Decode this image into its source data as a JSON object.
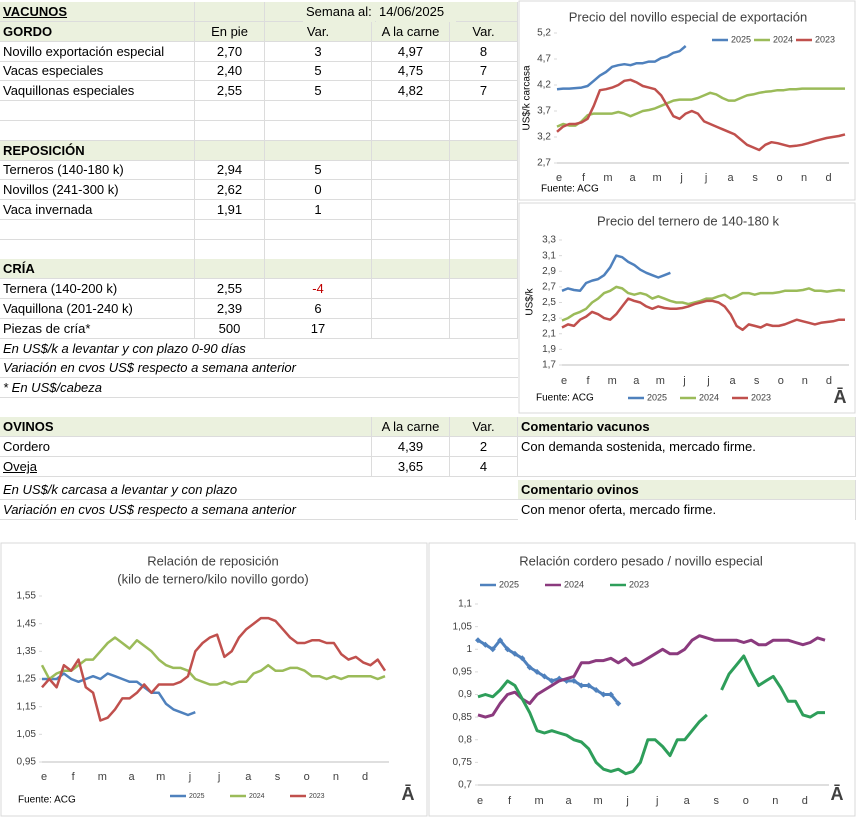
{
  "vacunos": {
    "title": "VACUNOS",
    "week_label": "Semana al:",
    "week": "14/06/2025",
    "gordo": {
      "title": "GORDO",
      "columns": [
        "En pie",
        "Var.",
        "A la carne",
        "Var."
      ],
      "rows": [
        [
          "Novillo exportación especial",
          "2,70",
          "3",
          "4,97",
          "8"
        ],
        [
          "Vacas especiales",
          "2,40",
          "5",
          "4,75",
          "7"
        ],
        [
          "Vaquillonas especiales",
          "2,55",
          "5",
          "4,82",
          "7"
        ]
      ]
    },
    "reposicion": {
      "title": "REPOSICIÓN",
      "rows": [
        [
          "Terneros (140-180 k)",
          "2,94",
          "5"
        ],
        [
          "Novillos (241-300 k)",
          "2,62",
          "0"
        ],
        [
          "Vaca invernada",
          "1,91",
          "1"
        ]
      ]
    },
    "cria": {
      "title": "CRÍA",
      "rows": [
        [
          "Ternera (140-200 k)",
          "2,55",
          "-4"
        ],
        [
          "Vaquillona (201-240 k)",
          "2,39",
          "6"
        ],
        [
          "Piezas de cría*",
          "500",
          "17"
        ]
      ]
    },
    "notes": [
      "En US$/k a levantar y con plazo 0-90 días",
      "Variación en cvos US$ respecto a semana anterior",
      "* En US$/cabeza"
    ]
  },
  "ovinos": {
    "title": "OVINOS",
    "columns": [
      "A la carne",
      "Var."
    ],
    "rows": [
      [
        "Cordero",
        "4,39",
        "2"
      ],
      [
        "Oveja",
        "3,65",
        "4"
      ]
    ],
    "notes": [
      "En US$/k carcasa a levantar y con plazo",
      "Variación en cvos US$ respecto a semana anterior"
    ]
  },
  "comments": [
    {
      "title": "Comentario vacunos",
      "text": "Con demanda sostenida, mercado firme."
    },
    {
      "title": "Comentario ovinos",
      "text": "Con menor oferta, mercado firme."
    }
  ],
  "chart_data": [
    {
      "type": "line",
      "title": "Precio del novillo especial de exportación",
      "ylabel": "US$/k carcasa",
      "source": "Fuente: ACG",
      "legend": "top",
      "categories": [
        "e",
        null,
        null,
        null,
        "f",
        null,
        null,
        null,
        "m",
        null,
        null,
        null,
        "a",
        null,
        null,
        null,
        "m",
        null,
        null,
        null,
        "j",
        null,
        null,
        null,
        "j",
        null,
        null,
        null,
        "a",
        null,
        null,
        null,
        "s",
        null,
        null,
        null,
        "o",
        null,
        null,
        null,
        "n",
        null,
        null,
        null,
        "d",
        null,
        null,
        null
      ],
      "ylim": [
        2.7,
        5.2
      ],
      "yticks": [
        {
          "value": 2.7,
          "label": "2,7"
        },
        {
          "value": 3.2,
          "label": "3,2"
        },
        {
          "value": 3.7,
          "label": "3,7"
        },
        {
          "value": 4.2,
          "label": "4,2"
        },
        {
          "value": 4.7,
          "label": "4,7"
        },
        {
          "value": 5.2,
          "label": "5,2"
        }
      ],
      "series": [
        {
          "name": "2025",
          "color": "#4f81bd",
          "values": [
            4.12,
            4.13,
            4.13,
            4.14,
            4.15,
            4.18,
            4.28,
            4.38,
            4.45,
            4.55,
            4.58,
            4.6,
            4.58,
            4.62,
            4.62,
            4.65,
            4.65,
            4.72,
            4.75,
            4.82,
            4.85,
            4.95,
            null,
            null,
            null,
            null,
            null,
            null,
            null,
            null,
            null,
            null,
            null,
            null,
            null,
            null,
            null,
            null,
            null,
            null,
            null,
            null,
            null,
            null,
            null,
            null,
            null,
            null
          ]
        },
        {
          "name": "2024",
          "color": "#9bbb59",
          "values": [
            3.4,
            3.45,
            3.42,
            3.42,
            3.5,
            3.62,
            3.65,
            3.65,
            3.65,
            3.65,
            3.68,
            3.65,
            3.6,
            3.65,
            3.7,
            3.72,
            3.75,
            3.8,
            3.85,
            3.9,
            3.92,
            3.92,
            3.92,
            3.95,
            4.0,
            4.05,
            4.02,
            3.95,
            3.9,
            3.9,
            3.95,
            4.0,
            4.02,
            4.05,
            4.07,
            4.08,
            4.1,
            4.1,
            4.12,
            4.12,
            4.13,
            4.13,
            4.13,
            4.13,
            4.13,
            4.13,
            4.13,
            4.13
          ]
        },
        {
          "name": "2023",
          "color": "#c0504d",
          "values": [
            3.3,
            3.4,
            3.45,
            3.45,
            3.48,
            3.55,
            3.8,
            4.1,
            4.12,
            4.15,
            4.2,
            4.28,
            4.3,
            4.25,
            4.18,
            4.15,
            4.12,
            4.0,
            3.8,
            3.6,
            3.55,
            3.65,
            3.7,
            3.65,
            3.5,
            3.45,
            3.4,
            3.35,
            3.3,
            3.25,
            3.15,
            3.05,
            3.0,
            2.95,
            3.05,
            3.1,
            3.08,
            3.05,
            3.02,
            3.03,
            3.05,
            3.08,
            3.12,
            3.15,
            3.18,
            3.2,
            3.22,
            3.25
          ]
        }
      ]
    },
    {
      "type": "line",
      "title": "Precio del ternero de 140-180  k",
      "ylabel": "US$/k",
      "source": "Fuente: ACG",
      "logo": "Ā",
      "legend": "bottom",
      "categories": [
        "e",
        null,
        null,
        null,
        "f",
        null,
        null,
        null,
        "m",
        null,
        null,
        null,
        "a",
        null,
        null,
        null,
        "m",
        null,
        null,
        null,
        "j",
        null,
        null,
        null,
        "j",
        null,
        null,
        null,
        "a",
        null,
        null,
        null,
        "s",
        null,
        null,
        null,
        "o",
        null,
        null,
        null,
        "n",
        null,
        null,
        null,
        "d",
        null,
        null,
        null
      ],
      "ylim": [
        1.7,
        3.3
      ],
      "yticks": [
        {
          "value": 1.7,
          "label": "1,7"
        },
        {
          "value": 1.9,
          "label": "1,9"
        },
        {
          "value": 2.1,
          "label": "2,1"
        },
        {
          "value": 2.3,
          "label": "2,3"
        },
        {
          "value": 2.5,
          "label": "2,5"
        },
        {
          "value": 2.7,
          "label": "2,7"
        },
        {
          "value": 2.9,
          "label": "2,9"
        },
        {
          "value": 3.1,
          "label": "3,1"
        },
        {
          "value": 3.3,
          "label": "3,3"
        }
      ],
      "series": [
        {
          "name": "2025",
          "color": "#4f81bd",
          "values": [
            2.65,
            2.68,
            2.66,
            2.65,
            2.75,
            2.78,
            2.8,
            2.85,
            2.95,
            3.1,
            3.08,
            3.02,
            2.98,
            2.92,
            2.88,
            2.85,
            2.82,
            2.85,
            2.88,
            null,
            null,
            null,
            null,
            null,
            null,
            null,
            null,
            null,
            null,
            null,
            null,
            null,
            null,
            null,
            null,
            null,
            null,
            null,
            null,
            null,
            null,
            null,
            null,
            null,
            null,
            null,
            null,
            null
          ]
        },
        {
          "name": "2024",
          "color": "#9bbb59",
          "values": [
            2.27,
            2.3,
            2.35,
            2.38,
            2.42,
            2.5,
            2.55,
            2.62,
            2.65,
            2.7,
            2.68,
            2.62,
            2.6,
            2.62,
            2.6,
            2.55,
            2.58,
            2.55,
            2.52,
            2.5,
            2.5,
            2.48,
            2.5,
            2.52,
            2.55,
            2.55,
            2.58,
            2.6,
            2.55,
            2.58,
            2.62,
            2.62,
            2.6,
            2.62,
            2.62,
            2.62,
            2.63,
            2.65,
            2.65,
            2.65,
            2.66,
            2.68,
            2.65,
            2.65,
            2.64,
            2.65,
            2.66,
            2.65
          ]
        },
        {
          "name": "2023",
          "color": "#c0504d",
          "values": [
            2.18,
            2.22,
            2.2,
            2.28,
            2.32,
            2.38,
            2.35,
            2.3,
            2.28,
            2.35,
            2.45,
            2.55,
            2.52,
            2.5,
            2.45,
            2.42,
            2.45,
            2.43,
            2.42,
            2.42,
            2.43,
            2.45,
            2.48,
            2.5,
            2.52,
            2.52,
            2.5,
            2.45,
            2.35,
            2.2,
            2.15,
            2.22,
            2.2,
            2.18,
            2.22,
            2.2,
            2.2,
            2.22,
            2.25,
            2.28,
            2.26,
            2.24,
            2.22,
            2.24,
            2.25,
            2.26,
            2.28,
            2.28
          ]
        }
      ]
    },
    {
      "type": "line",
      "title": "Relación de reposición",
      "subtitle": "(kilo de ternero/kilo novillo gordo)",
      "source": "Fuente:  ACG",
      "logo": "Ā",
      "legend": "bottom",
      "categories": [
        "e",
        null,
        null,
        null,
        "f",
        null,
        null,
        null,
        "m",
        null,
        null,
        null,
        "a",
        null,
        null,
        null,
        "m",
        null,
        null,
        null,
        "j",
        null,
        null,
        null,
        "j",
        null,
        null,
        null,
        "a",
        null,
        null,
        null,
        "s",
        null,
        null,
        null,
        "o",
        null,
        null,
        null,
        "n",
        null,
        null,
        null,
        "d",
        null,
        null,
        null
      ],
      "ylim": [
        0.95,
        1.55
      ],
      "yticks": [
        {
          "value": 0.95,
          "label": "0,95"
        },
        {
          "value": 1.05,
          "label": "1,05"
        },
        {
          "value": 1.15,
          "label": "1,15"
        },
        {
          "value": 1.25,
          "label": "1,25"
        },
        {
          "value": 1.35,
          "label": "1,35"
        },
        {
          "value": 1.45,
          "label": "1,45"
        },
        {
          "value": 1.55,
          "label": "1,55"
        }
      ],
      "series": [
        {
          "name": "2025",
          "color": "#4f81bd",
          "values": [
            1.25,
            1.25,
            1.25,
            1.27,
            1.25,
            1.24,
            1.25,
            1.26,
            1.25,
            1.27,
            1.26,
            1.25,
            1.24,
            1.24,
            1.22,
            1.2,
            1.2,
            1.16,
            1.14,
            1.13,
            1.12,
            1.13,
            null,
            null,
            null,
            null,
            null,
            null,
            null,
            null,
            null,
            null,
            null,
            null,
            null,
            null,
            null,
            null,
            null,
            null,
            null,
            null,
            null,
            null,
            null,
            null,
            null,
            null
          ]
        },
        {
          "name": "2024",
          "color": "#9bbb59",
          "values": [
            1.3,
            1.25,
            1.27,
            1.28,
            1.28,
            1.3,
            1.32,
            1.32,
            1.35,
            1.38,
            1.4,
            1.38,
            1.36,
            1.39,
            1.37,
            1.35,
            1.32,
            1.3,
            1.29,
            1.29,
            1.28,
            1.25,
            1.24,
            1.23,
            1.23,
            1.24,
            1.23,
            1.24,
            1.24,
            1.27,
            1.28,
            1.3,
            1.28,
            1.28,
            1.29,
            1.29,
            1.28,
            1.26,
            1.26,
            1.25,
            1.26,
            1.25,
            1.26,
            1.26,
            1.26,
            1.26,
            1.25,
            1.26
          ]
        },
        {
          "name": "2023",
          "color": "#c0504d",
          "values": [
            1.22,
            1.25,
            1.22,
            1.3,
            1.28,
            1.32,
            1.22,
            1.2,
            1.1,
            1.11,
            1.14,
            1.18,
            1.18,
            1.2,
            1.23,
            1.2,
            1.23,
            1.23,
            1.23,
            1.24,
            1.26,
            1.35,
            1.38,
            1.4,
            1.41,
            1.33,
            1.35,
            1.4,
            1.43,
            1.45,
            1.47,
            1.47,
            1.46,
            1.43,
            1.4,
            1.38,
            1.38,
            1.39,
            1.39,
            1.38,
            1.38,
            1.34,
            1.32,
            1.33,
            1.31,
            1.3,
            1.32,
            1.28
          ]
        }
      ]
    },
    {
      "type": "line",
      "title": "Relación cordero pesado / novillo especial",
      "logo": "Ā",
      "legend": "top",
      "categories": [
        "e",
        null,
        null,
        null,
        "f",
        null,
        null,
        null,
        "m",
        null,
        null,
        null,
        "a",
        null,
        null,
        null,
        "m",
        null,
        null,
        null,
        "j",
        null,
        null,
        null,
        "j",
        null,
        null,
        null,
        "a",
        null,
        null,
        null,
        "s",
        null,
        null,
        null,
        "o",
        null,
        null,
        null,
        "n",
        null,
        null,
        null,
        "d",
        null,
        null,
        null
      ],
      "ylim": [
        0.7,
        1.1
      ],
      "yticks": [
        {
          "value": 0.7,
          "label": "0,7"
        },
        {
          "value": 0.75,
          "label": "0,75"
        },
        {
          "value": 0.8,
          "label": "0,8"
        },
        {
          "value": 0.85,
          "label": "0,85"
        },
        {
          "value": 0.9,
          "label": "0,9"
        },
        {
          "value": 0.95,
          "label": "0,95"
        },
        1,
        {
          "value": 1.05,
          "label": "1,05"
        },
        {
          "value": 1.1,
          "label": "1,1"
        }
      ],
      "series": [
        {
          "name": "2025",
          "color": "#4f81bd",
          "markers": true,
          "values": [
            1.02,
            1.01,
            1.0,
            1.02,
            1.0,
            0.99,
            0.98,
            0.96,
            0.95,
            0.94,
            0.93,
            0.935,
            0.93,
            0.93,
            0.92,
            0.92,
            0.91,
            0.9,
            0.9,
            0.88,
            null,
            null,
            null,
            null,
            null,
            null,
            null,
            null,
            null,
            null,
            null,
            null,
            null,
            null,
            null,
            null,
            null,
            null,
            null,
            null,
            null,
            null,
            null,
            null,
            null,
            null,
            null,
            null
          ]
        },
        {
          "name": "2024",
          "color": "#8b3a7e",
          "values": [
            0.855,
            0.85,
            0.855,
            0.88,
            0.9,
            0.905,
            0.89,
            0.88,
            0.9,
            0.91,
            0.92,
            0.93,
            0.935,
            0.94,
            0.97,
            0.97,
            0.975,
            0.975,
            0.98,
            0.97,
            0.98,
            0.965,
            0.97,
            0.98,
            0.99,
            1.0,
            0.99,
            0.99,
            1.0,
            1.02,
            1.03,
            1.025,
            1.02,
            1.02,
            1.02,
            1.02,
            1.015,
            1.02,
            1.01,
            1.01,
            1.02,
            1.02,
            1.02,
            1.015,
            1.01,
            1.015,
            1.025,
            1.02
          ]
        },
        {
          "name": "2023",
          "color": "#2e9e5a",
          "values": [
            0.895,
            0.9,
            0.895,
            0.91,
            0.93,
            0.92,
            0.89,
            0.86,
            0.82,
            0.815,
            0.82,
            0.815,
            0.81,
            0.8,
            0.795,
            0.78,
            0.75,
            0.735,
            0.73,
            0.735,
            0.725,
            0.73,
            0.75,
            0.8,
            0.8,
            0.785,
            0.765,
            0.8,
            0.8,
            0.82,
            0.84,
            0.855,
            null,
            0.91,
            0.945,
            0.965,
            0.985,
            0.95,
            0.92,
            0.93,
            0.94,
            0.915,
            0.885,
            0.885,
            0.855,
            0.85,
            0.86,
            0.86
          ]
        }
      ]
    }
  ]
}
